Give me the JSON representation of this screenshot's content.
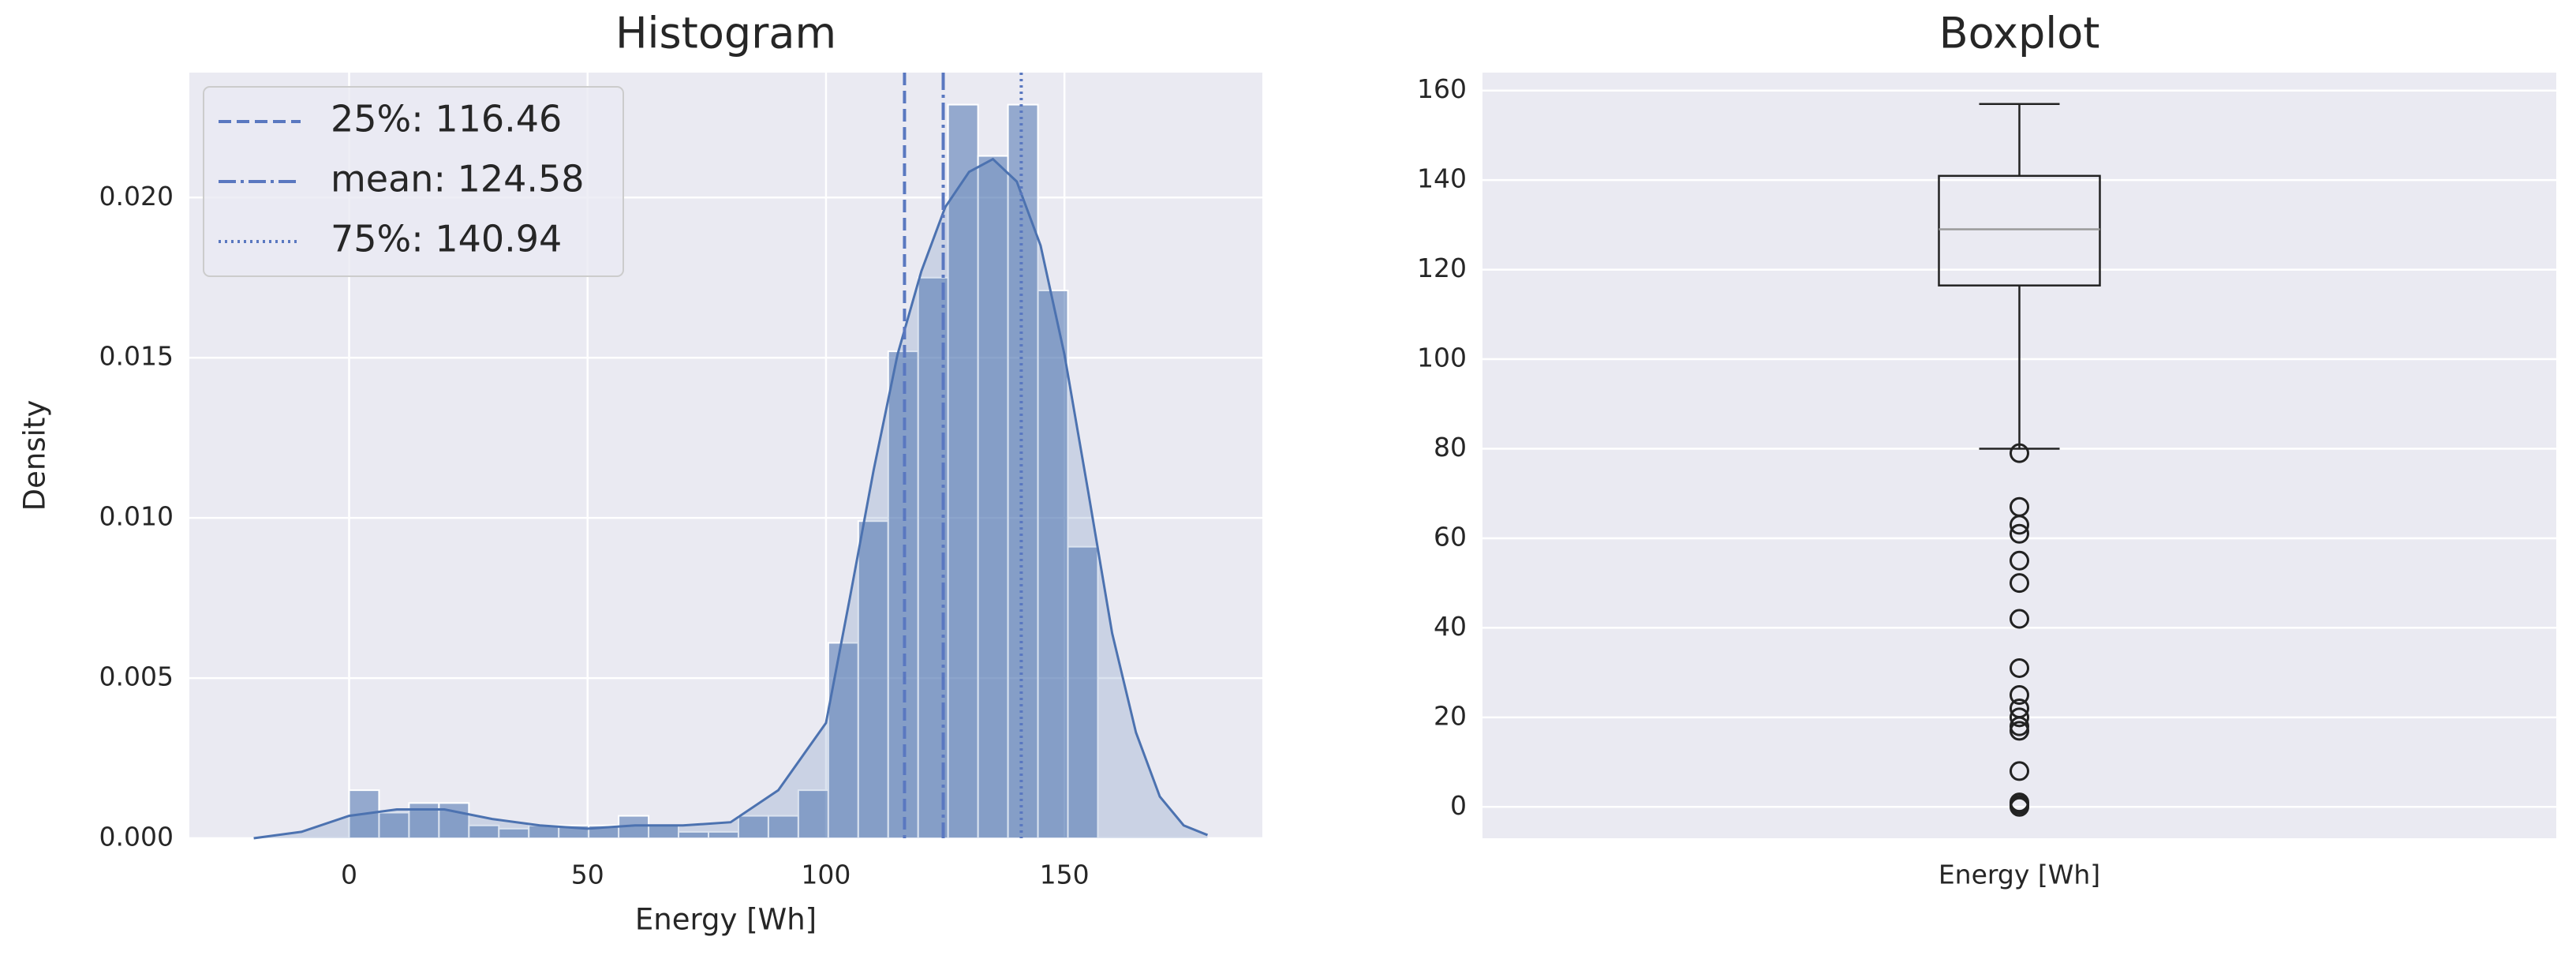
{
  "chart_data": [
    {
      "type": "histogram",
      "title": "Histogram",
      "x_label": "Energy [Wh]",
      "y_label": "Density",
      "bins": [
        0,
        6.28,
        12.56,
        18.84,
        25.12,
        31.4,
        37.68,
        43.96,
        50.24,
        56.52,
        62.8,
        69.08,
        75.36,
        81.64,
        87.92,
        94.2,
        100.48,
        106.76,
        113.04,
        119.32,
        125.6,
        131.88,
        138.16,
        144.44,
        150.72,
        157
      ],
      "values": [
        0.0015,
        0.0008,
        0.0011,
        0.0011,
        0.0004,
        0.0003,
        0.0004,
        0.0004,
        0.0004,
        0.0007,
        0.0004,
        0.0002,
        0.0002,
        0.0007,
        0.0007,
        0.0015,
        0.0061,
        0.0099,
        0.0152,
        0.0175,
        0.0229,
        0.0213,
        0.0229,
        0.0171,
        0.0091
      ],
      "color": "#4c72b0",
      "kde": {
        "x": [
          -20,
          -10,
          0,
          10,
          20,
          30,
          40,
          50,
          60,
          70,
          80,
          90,
          100,
          105,
          110,
          115,
          120,
          125,
          130,
          135,
          140,
          145,
          150,
          155,
          160,
          165,
          170,
          175,
          180
        ],
        "values": [
          0,
          0.0002,
          0.0007,
          0.0009,
          0.0009,
          0.0006,
          0.0004,
          0.0003,
          0.0004,
          0.0004,
          0.0005,
          0.0015,
          0.0036,
          0.0075,
          0.0115,
          0.0151,
          0.0177,
          0.0197,
          0.0208,
          0.0212,
          0.0205,
          0.0185,
          0.0151,
          0.0108,
          0.0064,
          0.0033,
          0.0013,
          0.0004,
          0.0001
        ]
      },
      "vlines": [
        {
          "label": "25%: 116.46",
          "value": 116.46,
          "style": "dashed"
        },
        {
          "label": "mean: 124.58",
          "value": 124.58,
          "style": "dashdot"
        },
        {
          "label": "75%: 140.94",
          "value": 140.94,
          "style": "dotted"
        }
      ],
      "xlim": [
        -33.5,
        191.5
      ],
      "ylim": [
        0,
        0.0239
      ],
      "xticks": [
        0,
        50,
        100,
        150
      ],
      "yticks": [
        {
          "value": 0,
          "label": "0.000"
        },
        {
          "value": 0.005,
          "label": "0.005"
        },
        {
          "value": 0.01,
          "label": "0.010"
        },
        {
          "value": 0.015,
          "label": "0.015"
        },
        {
          "value": 0.02,
          "label": "0.020"
        }
      ],
      "grid": true,
      "legend": "upper left"
    },
    {
      "type": "boxplot",
      "title": "Boxplot",
      "categories": [
        "Energy [Wh]"
      ],
      "box": {
        "whislo": 80,
        "q1": 116.46,
        "med": 129,
        "q3": 140.94,
        "whishi": 157,
        "fliers": [
          79,
          67,
          63,
          61,
          55,
          50,
          42,
          31,
          25,
          22,
          20,
          18,
          17,
          8,
          1,
          0.5,
          0
        ]
      },
      "ylim": [
        -7,
        164
      ],
      "yticks": [
        0,
        20,
        40,
        60,
        80,
        100,
        120,
        140,
        160
      ],
      "grid": true
    }
  ]
}
